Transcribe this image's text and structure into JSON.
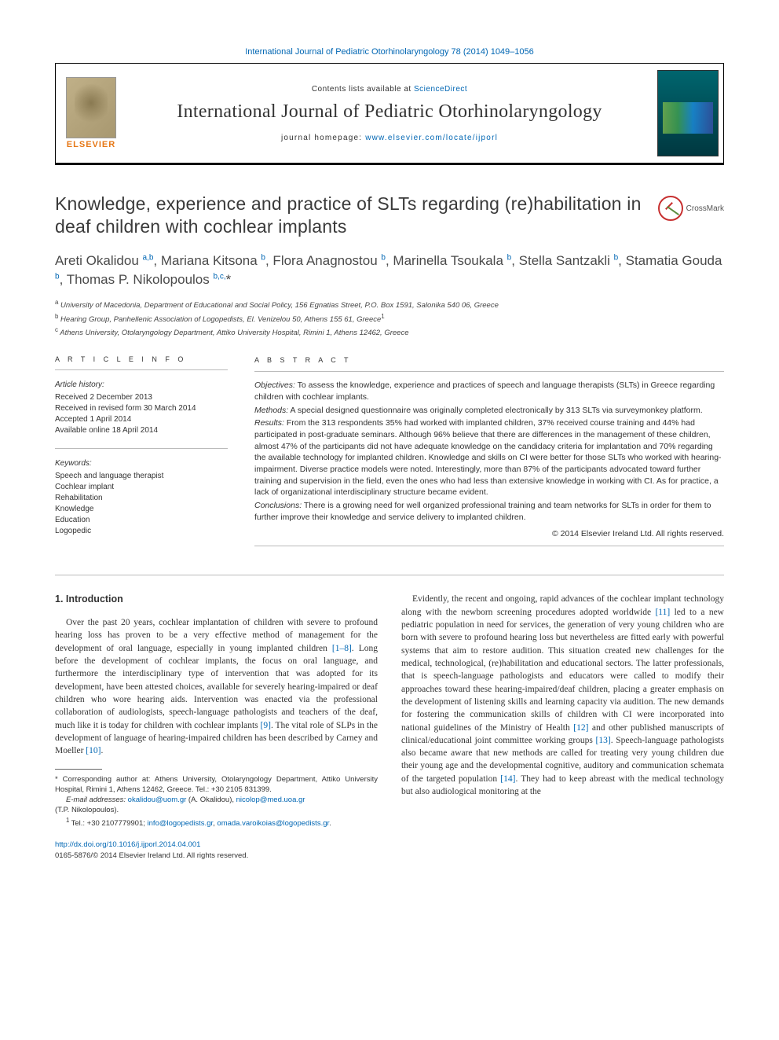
{
  "journal_ref": {
    "text": "International Journal of Pediatric Otorhinolaryngology 78 (2014) 1049–1056",
    "link": "#"
  },
  "header": {
    "publisher": "ELSEVIER",
    "contents_prefix": "Contents lists available at ",
    "contents_link_text": "ScienceDirect",
    "journal_name": "International Journal of Pediatric Otorhinolaryngology",
    "homepage_prefix": "journal homepage: ",
    "homepage_link_text": "www.elsevier.com/locate/ijporl"
  },
  "crossmark_label": "CrossMark",
  "article": {
    "title": "Knowledge, experience and practice of SLTs regarding (re)habilitation in deaf children with cochlear implants",
    "authors_html": "Areti Okalidou <sup>a,b</sup>, Mariana Kitsona <sup>b</sup>, Flora Anagnostou <sup>b</sup>, Marinella Tsoukala <sup>b</sup>, Stella Santzakli <sup>b</sup>, Stamatia Gouda <sup>b</sup>, Thomas P. Nikolopoulos <sup>b,c,</sup>*",
    "affiliations": [
      {
        "sup": "a",
        "text": "University of Macedonia, Department of Educational and Social Policy, 156 Egnatias Street, P.O. Box 1591, Salonika 540 06, Greece"
      },
      {
        "sup": "b",
        "text": "Hearing Group, Panhellenic Association of Logopedists, El. Venizelou 50, Athens 155 61, Greece",
        "sup2": "1"
      },
      {
        "sup": "c",
        "text": "Athens University, Otolaryngology Department, Attiko University Hospital, Rimini 1, Athens 12462, Greece"
      }
    ]
  },
  "info": {
    "heading": "A R T I C L E   I N F O",
    "history_title": "Article history:",
    "history": [
      "Received 2 December 2013",
      "Received in revised form 30 March 2014",
      "Accepted 1 April 2014",
      "Available online 18 April 2014"
    ],
    "keywords_title": "Keywords:",
    "keywords": [
      "Speech and language therapist",
      "Cochlear implant",
      "Rehabilitation",
      "Knowledge",
      "Education",
      "Logopedic"
    ]
  },
  "abstract": {
    "heading": "A B S T R A C T",
    "sections": [
      {
        "label": "Objectives:",
        "text": " To assess the knowledge, experience and practices of speech and language therapists (SLTs) in Greece regarding children with cochlear implants."
      },
      {
        "label": "Methods:",
        "text": " A special designed questionnaire was originally completed electronically by 313 SLTs via surveymonkey platform."
      },
      {
        "label": "Results:",
        "text": " From the 313 respondents 35% had worked with implanted children, 37% received course training and 44% had participated in post-graduate seminars. Although 96% believe that there are differences in the management of these children, almost 47% of the participants did not have adequate knowledge on the candidacy criteria for implantation and 70% regarding the available technology for implanted children. Knowledge and skills on CI were better for those SLTs who worked with hearing-impairment. Diverse practice models were noted. Interestingly, more than 87% of the participants advocated toward further training and supervision in the field, even the ones who had less than extensive knowledge in working with CI. As for practice, a lack of organizational interdisciplinary structure became evident."
      },
      {
        "label": "Conclusions:",
        "text": " There is a growing need for well organized professional training and team networks for SLTs in order for them to further improve their knowledge and service delivery to implanted children."
      }
    ],
    "copyright": "© 2014 Elsevier Ireland Ltd. All rights reserved."
  },
  "body": {
    "section_heading": "1. Introduction",
    "para1_pre": "Over the past 20 years, cochlear implantation of children with severe to profound hearing loss has proven to be a very effective method of management for the development of oral language, especially in young implanted children ",
    "cite1": "[1–8]",
    "para1_mid": ". Long before the development of cochlear implants, the focus on oral language, and furthermore the interdisciplinary type of intervention that was adopted for its development, have been attested choices, available for severely hearing-impaired or deaf children who wore hearing aids. Intervention was enacted via the professional collaboration of audiologists, speech-language pathologists and teachers of the deaf, much like it is today for children with cochlear implants ",
    "cite9": "[9]",
    "para1_mid2": ". The vital role of SLPs in the development of language of hearing-impaired children has been described by Carney and Moeller ",
    "cite10": "[10]",
    "para1_end": ".",
    "para2_pre": "Evidently, the recent and ongoing, rapid advances of the cochlear implant technology along with the newborn screening procedures adopted worldwide ",
    "cite11": "[11]",
    "para2_mid": " led to a new pediatric population in need for services, the generation of very young children who are born with severe to profound hearing loss but nevertheless are fitted early with powerful systems that aim to restore audition. This situation created new challenges for the medical, technological, (re)habilitation and educational sectors. The latter professionals, that is speech-language pathologists and educators were called to modify their approaches toward these hearing-impaired/deaf children, placing a greater emphasis on the development of listening skills and learning capacity via audition. The new demands for fostering the communication skills of children with CI were incorporated into national guidelines of the Ministry of Health ",
    "cite12": "[12]",
    "para2_mid2": " and other published manuscripts of clinical/educational joint committee working groups ",
    "cite13": "[13]",
    "para2_mid3": ". Speech-language pathologists also became aware that new methods are called for treating very young children due their young age and the developmental cognitive, auditory and communication schemata of the targeted population ",
    "cite14": "[14]",
    "para2_end": ". They had to keep abreast with the medical technology but also audiological monitoring at the"
  },
  "footnotes": {
    "corr_label": "* ",
    "corr_text": "Corresponding author at: Athens University, Otolaryngology Department, Attiko University Hospital, Rimini 1, Athens 12462, Greece. Tel.: +30 2105 831399.",
    "email_label": "E-mail addresses: ",
    "email1": "okalidou@uom.gr",
    "email1_name": " (A. Okalidou), ",
    "email2": "nicolop@med.uoa.gr",
    "email2_name": "(T.P. Nikolopoulos).",
    "note1_label": "1 ",
    "note1_text": "Tel.: +30 2107779901; ",
    "note1_link1": "info@logopedists.gr",
    "note1_sep": ", ",
    "note1_link2": "omada.varoikoias@logopedists.gr",
    "note1_end": "."
  },
  "doi": {
    "link": "http://dx.doi.org/10.1016/j.ijporl.2014.04.001",
    "issn_line": "0165-5876/© 2014 Elsevier Ireland Ltd. All rights reserved."
  },
  "colors": {
    "link": "#0066b3",
    "elsevier_orange": "#e67817",
    "crossmark_red": "#c73030",
    "crossmark_green": "#5b8c3e"
  }
}
